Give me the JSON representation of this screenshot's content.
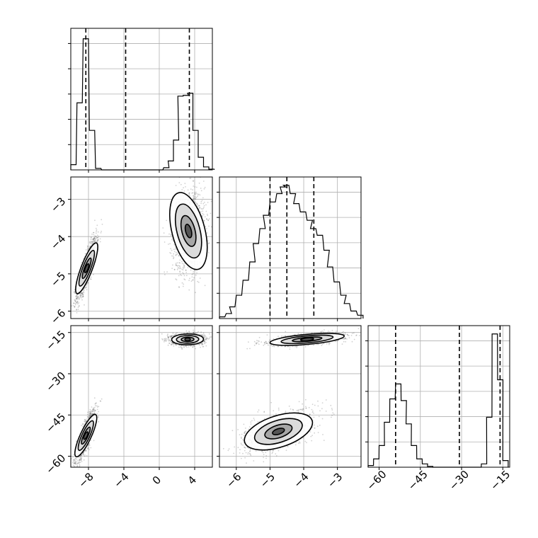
{
  "chart_data": [
    {
      "panel": "hist-p1",
      "type": "histogram",
      "xlim": [
        -10,
        6
      ],
      "quantiles": [
        -8.3,
        -3.8,
        3.4
      ],
      "bins": [
        [
          -10.0,
          7
        ],
        [
          -9.3,
          90
        ],
        [
          -8.6,
          176
        ],
        [
          -7.9,
          53
        ],
        [
          -7.2,
          2
        ],
        [
          -6.5,
          0
        ],
        [
          -5.8,
          0
        ],
        [
          -5.1,
          0
        ],
        [
          -4.4,
          0
        ],
        [
          -3.7,
          0
        ],
        [
          -3.0,
          0
        ],
        [
          -2.3,
          0
        ],
        [
          -1.6,
          0
        ],
        [
          -0.9,
          0
        ],
        [
          -0.2,
          0
        ],
        [
          0.5,
          3
        ],
        [
          1.0,
          12
        ],
        [
          1.6,
          40
        ],
        [
          2.1,
          99
        ],
        [
          2.7,
          100
        ],
        [
          3.2,
          103
        ],
        [
          3.8,
          53
        ],
        [
          4.4,
          17
        ],
        [
          5.0,
          4
        ],
        [
          5.6,
          1
        ]
      ],
      "bin_width": 0.6,
      "ylim": [
        0,
        190
      ],
      "show_ytick_labels": false
    },
    {
      "panel": "hist-p2",
      "type": "histogram",
      "xlim": [
        -6.5,
        -2.3
      ],
      "quantiles": [
        -5.0,
        -4.5,
        -3.7
      ],
      "bins": [
        [
          -6.5,
          2
        ],
        [
          -6.3,
          6
        ],
        [
          -6.2,
          14
        ],
        [
          -6.0,
          28
        ],
        [
          -5.8,
          46
        ],
        [
          -5.6,
          68
        ],
        [
          -5.5,
          90
        ],
        [
          -5.3,
          108
        ],
        [
          -5.2,
          124
        ],
        [
          -5.0,
          140
        ],
        [
          -4.8,
          150
        ],
        [
          -4.7,
          158
        ],
        [
          -4.6,
          160
        ],
        [
          -4.4,
          150
        ],
        [
          -4.3,
          138
        ],
        [
          -4.1,
          128
        ],
        [
          -3.9,
          118
        ],
        [
          -3.8,
          108
        ],
        [
          -3.6,
          100
        ],
        [
          -3.4,
          82
        ],
        [
          -3.3,
          62
        ],
        [
          -3.1,
          44
        ],
        [
          -2.9,
          28
        ],
        [
          -2.8,
          18
        ],
        [
          -2.6,
          9
        ],
        [
          -2.4,
          4
        ]
      ],
      "bin_width": 0.16,
      "ylim": [
        0,
        170
      ],
      "show_ytick_labels": false
    },
    {
      "panel": "hist-p3",
      "type": "histogram",
      "xlim": [
        -64,
        -12.5
      ],
      "quantiles": [
        -54,
        -30.8,
        -16
      ],
      "bins": [
        [
          -64,
          2
        ],
        [
          -62,
          10
        ],
        [
          -60,
          26
        ],
        [
          -58.1,
          54
        ],
        [
          -56.1,
          82
        ],
        [
          -54,
          100
        ],
        [
          -52,
          80
        ],
        [
          -50.2,
          52
        ],
        [
          -48.3,
          26
        ],
        [
          -46.3,
          10
        ],
        [
          -44.3,
          4
        ],
        [
          -42.4,
          1
        ],
        [
          -40.5,
          0
        ],
        [
          -38.5,
          0
        ],
        [
          -36.5,
          0
        ],
        [
          -34.6,
          0
        ],
        [
          -32.6,
          0
        ],
        [
          -30.7,
          0
        ],
        [
          -28.7,
          0
        ],
        [
          -26.8,
          0
        ],
        [
          -24.8,
          0
        ],
        [
          -22.8,
          4
        ],
        [
          -20.9,
          60
        ],
        [
          -18.9,
          160
        ],
        [
          -16.9,
          105
        ],
        [
          -15.0,
          8
        ]
      ],
      "bin_width": 1.95,
      "ylim": [
        0,
        170
      ],
      "show_ytick_labels": false
    },
    {
      "panel": "scatter-p1-p2",
      "type": "scatter",
      "xlim": [
        -10,
        6
      ],
      "ylim": [
        -6.2,
        -2.4
      ],
      "yticks": [
        -6,
        -5,
        -4,
        -3
      ],
      "clusters": [
        {
          "cx": -8.2,
          "cy": -4.85,
          "sx": 0.55,
          "sy": 0.4,
          "rho": 0.85,
          "n": 1400
        },
        {
          "cx": 3.3,
          "cy": -3.85,
          "sx": 0.9,
          "sy": 0.55,
          "rho": 0.1,
          "n": 1400
        }
      ]
    },
    {
      "panel": "scatter-p1-p3",
      "type": "scatter",
      "xlim": [
        -10,
        6
      ],
      "ylim": [
        -64,
        -12.5
      ],
      "xticks": [
        -8,
        -4,
        0,
        4
      ],
      "yticks": [
        -60,
        -45,
        -30,
        -15
      ],
      "clusters": [
        {
          "cx": -8.3,
          "cy": -52.5,
          "sx": 0.55,
          "sy": 4.5,
          "rho": 0.85,
          "n": 1400
        },
        {
          "cx": 3.2,
          "cy": -17.5,
          "sx": 0.9,
          "sy": 1.0,
          "rho": 0.05,
          "n": 1400
        }
      ]
    },
    {
      "panel": "scatter-p2-p3",
      "type": "scatter",
      "xlim": [
        -6.5,
        -2.3
      ],
      "ylim": [
        -64,
        -12.5
      ],
      "xticks": [
        -6,
        -5,
        -4,
        -3
      ],
      "clusters": [
        {
          "cx": -4.75,
          "cy": -51,
          "sx": 0.5,
          "sy": 3.6,
          "rho": 0.55,
          "n": 1400
        },
        {
          "cx": -3.9,
          "cy": -17.5,
          "sx": 0.55,
          "sy": 1.1,
          "rho": 0.55,
          "n": 1400
        }
      ]
    },
    {
      "panel": "hist-p3-axis",
      "type": "axis",
      "xticks": [
        -60,
        -45,
        -30,
        -15
      ]
    }
  ]
}
